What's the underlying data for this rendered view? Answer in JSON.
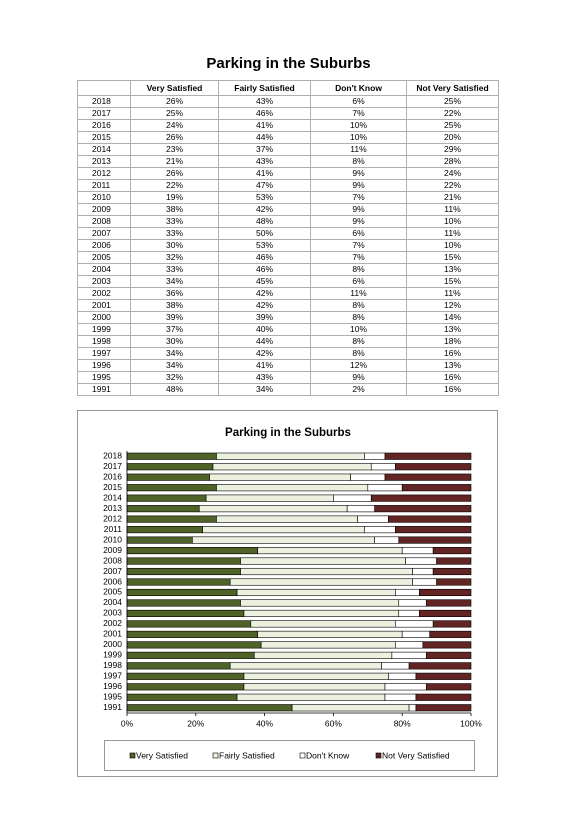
{
  "title": "Parking in the Suburbs",
  "table": {
    "columns": [
      "Very Satisfied",
      "Fairly Satisfied",
      "Don't Know",
      "Not Very Satisfied"
    ],
    "rows": [
      [
        "2018",
        "26%",
        "43%",
        "6%",
        "25%"
      ],
      [
        "2017",
        "25%",
        "46%",
        "7%",
        "22%"
      ],
      [
        "2016",
        "24%",
        "41%",
        "10%",
        "25%"
      ],
      [
        "2015",
        "26%",
        "44%",
        "10%",
        "20%"
      ],
      [
        "2014",
        "23%",
        "37%",
        "11%",
        "29%"
      ],
      [
        "2013",
        "21%",
        "43%",
        "8%",
        "28%"
      ],
      [
        "2012",
        "26%",
        "41%",
        "9%",
        "24%"
      ],
      [
        "2011",
        "22%",
        "47%",
        "9%",
        "22%"
      ],
      [
        "2010",
        "19%",
        "53%",
        "7%",
        "21%"
      ],
      [
        "2009",
        "38%",
        "42%",
        "9%",
        "11%"
      ],
      [
        "2008",
        "33%",
        "48%",
        "9%",
        "10%"
      ],
      [
        "2007",
        "33%",
        "50%",
        "6%",
        "11%"
      ],
      [
        "2006",
        "30%",
        "53%",
        "7%",
        "10%"
      ],
      [
        "2005",
        "32%",
        "46%",
        "7%",
        "15%"
      ],
      [
        "2004",
        "33%",
        "46%",
        "8%",
        "13%"
      ],
      [
        "2003",
        "34%",
        "45%",
        "6%",
        "15%"
      ],
      [
        "2002",
        "36%",
        "42%",
        "11%",
        "11%"
      ],
      [
        "2001",
        "38%",
        "42%",
        "8%",
        "12%"
      ],
      [
        "2000",
        "39%",
        "39%",
        "8%",
        "14%"
      ],
      [
        "1999",
        "37%",
        "40%",
        "10%",
        "13%"
      ],
      [
        "1998",
        "30%",
        "44%",
        "8%",
        "18%"
      ],
      [
        "1997",
        "34%",
        "42%",
        "8%",
        "16%"
      ],
      [
        "1996",
        "34%",
        "41%",
        "12%",
        "13%"
      ],
      [
        "1995",
        "32%",
        "43%",
        "9%",
        "16%"
      ],
      [
        "1991",
        "48%",
        "34%",
        "2%",
        "16%"
      ]
    ]
  },
  "chart_data": {
    "type": "stacked-barh",
    "title": "Parking in the Suburbs",
    "categories": [
      "2018",
      "2017",
      "2016",
      "2015",
      "2014",
      "2013",
      "2012",
      "2011",
      "2010",
      "2009",
      "2008",
      "2007",
      "2006",
      "2005",
      "2004",
      "2003",
      "2002",
      "2001",
      "2000",
      "1999",
      "1998",
      "1997",
      "1996",
      "1995",
      "1991"
    ],
    "series": [
      {
        "name": "Very Satisfied",
        "color": "#4f6228",
        "values": [
          26,
          25,
          24,
          26,
          23,
          21,
          26,
          22,
          19,
          38,
          33,
          33,
          30,
          32,
          33,
          34,
          36,
          38,
          39,
          37,
          30,
          34,
          34,
          32,
          48
        ]
      },
      {
        "name": "Fairly Satisfied",
        "color": "#ebf1de",
        "values": [
          43,
          46,
          41,
          44,
          37,
          43,
          41,
          47,
          53,
          42,
          48,
          50,
          53,
          46,
          46,
          45,
          42,
          42,
          39,
          40,
          44,
          42,
          41,
          43,
          34
        ]
      },
      {
        "name": "Don't Know",
        "color": "#ffffff",
        "values": [
          6,
          7,
          10,
          10,
          11,
          8,
          9,
          9,
          7,
          9,
          9,
          6,
          7,
          7,
          8,
          6,
          11,
          8,
          8,
          10,
          8,
          8,
          12,
          9,
          2
        ]
      },
      {
        "name": "Not Very Satisfied",
        "color": "#632523",
        "values": [
          25,
          22,
          25,
          20,
          29,
          28,
          24,
          22,
          21,
          11,
          10,
          11,
          10,
          15,
          13,
          15,
          11,
          12,
          14,
          13,
          18,
          16,
          13,
          16,
          16
        ]
      }
    ],
    "xlim": [
      0,
      100
    ],
    "xticks": [
      {
        "value": 0,
        "label": "0%"
      },
      {
        "value": 20,
        "label": "20%"
      },
      {
        "value": 40,
        "label": "40%"
      },
      {
        "value": 60,
        "label": "60%"
      },
      {
        "value": 80,
        "label": "80%"
      },
      {
        "value": 100,
        "label": "100%"
      }
    ],
    "legend": "bottom"
  }
}
